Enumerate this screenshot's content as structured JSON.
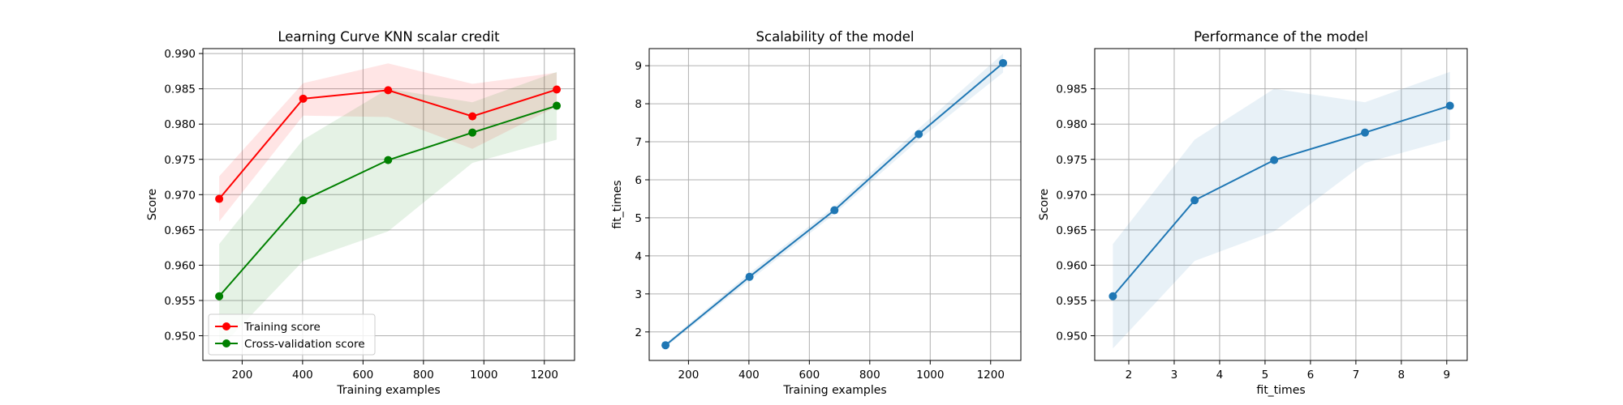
{
  "colors": {
    "train": "#ff0000",
    "cv": "#008000",
    "blue": "#1f77b4",
    "grid": "#b0b0b0",
    "axes": "#000000"
  },
  "chart_data": [
    {
      "type": "line",
      "title": "Learning Curve KNN scalar credit",
      "xlabel": "Training examples",
      "ylabel": "Score",
      "xlim": [
        70,
        1300
      ],
      "ylim": [
        0.9465,
        0.9907
      ],
      "xticks": [
        200,
        400,
        600,
        800,
        1000,
        1200
      ],
      "xtick_labels": [
        "200",
        "400",
        "600",
        "800",
        "1000",
        "1200"
      ],
      "yticks": [
        0.95,
        0.955,
        0.96,
        0.965,
        0.97,
        0.975,
        0.98,
        0.985,
        0.99
      ],
      "ytick_labels": [
        "0.950",
        "0.955",
        "0.960",
        "0.965",
        "0.970",
        "0.975",
        "0.980",
        "0.985",
        "0.990"
      ],
      "grid": true,
      "legend_position": "lower-left",
      "x": [
        124,
        402,
        683,
        962,
        1241
      ],
      "series": [
        {
          "name": "Training score",
          "color": "#ff0000",
          "values": [
            0.9694,
            0.9836,
            0.9848,
            0.9811,
            0.9849
          ],
          "band_low": [
            0.9662,
            0.9812,
            0.981,
            0.9765,
            0.9825
          ],
          "band_high": [
            0.9726,
            0.9858,
            0.9886,
            0.9857,
            0.9873
          ]
        },
        {
          "name": "Cross-validation score",
          "color": "#008000",
          "values": [
            0.9556,
            0.9692,
            0.9749,
            0.9788,
            0.9826
          ],
          "band_low": [
            0.9482,
            0.9606,
            0.9648,
            0.9745,
            0.9778
          ],
          "band_high": [
            0.963,
            0.9778,
            0.985,
            0.9831,
            0.9874
          ]
        }
      ]
    },
    {
      "type": "line",
      "title": "Scalability of the model",
      "xlabel": "Training examples",
      "ylabel": "fit_times",
      "xlim": [
        70,
        1300
      ],
      "ylim": [
        1.25,
        9.45
      ],
      "xticks": [
        200,
        400,
        600,
        800,
        1000,
        1200
      ],
      "xtick_labels": [
        "200",
        "400",
        "600",
        "800",
        "1000",
        "1200"
      ],
      "yticks": [
        2,
        3,
        4,
        5,
        6,
        7,
        8,
        9
      ],
      "ytick_labels": [
        "2",
        "3",
        "4",
        "5",
        "6",
        "7",
        "8",
        "9"
      ],
      "grid": true,
      "x": [
        124,
        402,
        683,
        962,
        1241
      ],
      "series": [
        {
          "color": "#1f77b4",
          "values": [
            1.65,
            3.45,
            5.2,
            7.2,
            9.07
          ],
          "band_low": [
            1.6,
            3.35,
            5.1,
            7.05,
            8.82
          ],
          "band_high": [
            1.7,
            3.55,
            5.3,
            7.35,
            9.32
          ]
        }
      ]
    },
    {
      "type": "line",
      "title": "Performance of the model",
      "xlabel": "fit_times",
      "ylabel": "Score",
      "xlim": [
        1.25,
        9.45
      ],
      "ylim": [
        0.9465,
        0.9907
      ],
      "xticks": [
        2,
        3,
        4,
        5,
        6,
        7,
        8,
        9
      ],
      "xtick_labels": [
        "2",
        "3",
        "4",
        "5",
        "6",
        "7",
        "8",
        "9"
      ],
      "yticks": [
        0.95,
        0.955,
        0.96,
        0.965,
        0.97,
        0.975,
        0.98,
        0.985
      ],
      "ytick_labels": [
        "0.950",
        "0.955",
        "0.960",
        "0.965",
        "0.970",
        "0.975",
        "0.980",
        "0.985"
      ],
      "grid": true,
      "x": [
        1.65,
        3.45,
        5.2,
        7.2,
        9.07
      ],
      "series": [
        {
          "color": "#1f77b4",
          "values": [
            0.9556,
            0.9692,
            0.9749,
            0.9788,
            0.9826
          ],
          "band_low": [
            0.9482,
            0.9606,
            0.9648,
            0.9745,
            0.9778
          ],
          "band_high": [
            0.963,
            0.9778,
            0.985,
            0.9831,
            0.9874
          ]
        }
      ]
    }
  ]
}
